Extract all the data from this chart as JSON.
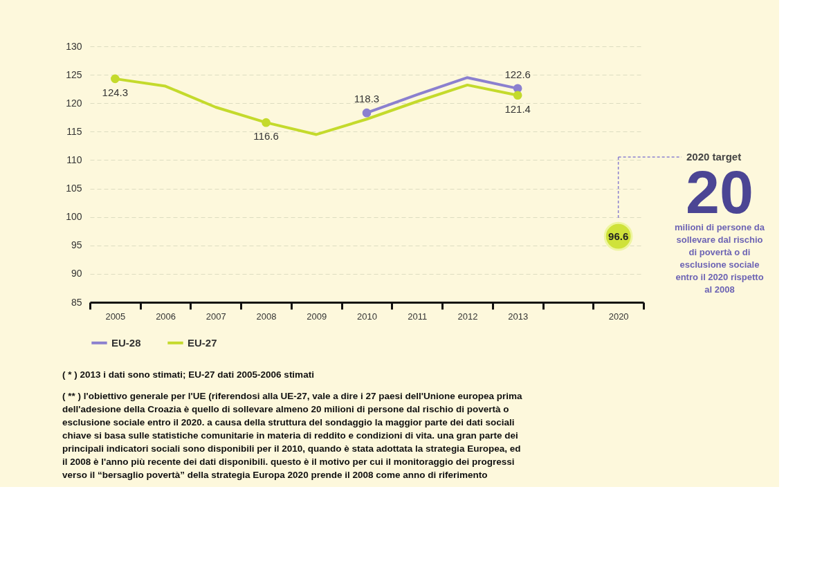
{
  "chart_data": {
    "type": "line",
    "categories": [
      "2005",
      "2006",
      "2007",
      "2008",
      "2009",
      "2010",
      "2011",
      "2012",
      "2013",
      null,
      "2020"
    ],
    "series": [
      {
        "name": "EU-28",
        "color": "#8b80cf",
        "values": [
          null,
          null,
          null,
          null,
          null,
          118.3,
          121.5,
          124.5,
          122.6,
          null,
          null
        ],
        "value_labels": [
          null,
          null,
          null,
          null,
          null,
          "118.3",
          null,
          null,
          "122.6",
          null,
          null
        ]
      },
      {
        "name": "EU-27",
        "color": "#c4da2c",
        "values": [
          124.3,
          123.0,
          119.3,
          116.6,
          114.5,
          117.2,
          120.3,
          123.2,
          121.4,
          null,
          null
        ],
        "value_labels": [
          "124.3",
          null,
          null,
          "116.6",
          null,
          null,
          null,
          null,
          "121.4",
          null,
          null
        ]
      },
      {
        "type": "scatter",
        "color": "#cfe23a",
        "values": [
          null,
          null,
          null,
          null,
          null,
          null,
          null,
          null,
          null,
          null,
          96.6
        ],
        "value_labels": [
          null,
          null,
          null,
          null,
          null,
          null,
          null,
          null,
          null,
          null,
          "96.6"
        ]
      }
    ],
    "ylim": [
      85,
      130
    ],
    "yticks": [
      85,
      90,
      95,
      100,
      105,
      110,
      115,
      120,
      125,
      130
    ],
    "grid": "y",
    "legend": "bottom",
    "line_style": "solid",
    "annotations": [
      "2020 target",
      "20",
      "milioni di persone da sollevare dal rischio di povertà o di esclusione sociale entro il 2020 rispetto al 2008",
      "( * )  2013 i dati sono stimati; EU-27 dati 2005-2006 stimati",
      "( ** )  l'obiettivo generale per l'UE (riferendosi alla UE-27, vale a dire i 27 paesi dell'Unione europea prima dell'adesione della Croazia è quello di sollevare almeno 20 milioni di persone dal rischio di povertà o esclusione sociale entro il 2020. a causa della struttura del sondaggio la maggior parte dei dati sociali chiave si basa sulle statistiche comunitarie in materia di reddito e condizioni di vita. una gran parte dei principali indicatori sociali sono disponibili per il 2010, quando è stata adottata la strategia Europea, ed il 2008 è l'anno più recente dei dati disponibili. questo è il motivo per cui il monitoraggio dei progressi verso il “bersaglio povertà” della strategia Europa 2020 prende il 2008 come anno di riferimento"
    ]
  }
}
